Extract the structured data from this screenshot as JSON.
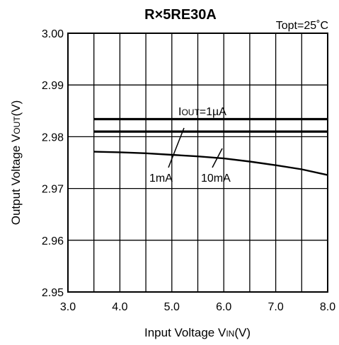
{
  "chart_data": {
    "type": "line",
    "title": "R×5RE30A",
    "condition": "Topt=25˚C",
    "xlabel": {
      "main": "Input Voltage V",
      "sub": "IN",
      "suffix": "(V)"
    },
    "ylabel": {
      "main": "Output Voltage V",
      "sub": "OUT",
      "suffix": "(V)"
    },
    "xlim": [
      3.0,
      8.0
    ],
    "ylim": [
      2.95,
      3.0
    ],
    "x_ticks": [
      3.0,
      3.5,
      4.0,
      4.5,
      5.0,
      5.5,
      6.0,
      6.5,
      7.0,
      7.5,
      8.0
    ],
    "x_tick_labels": [
      "3.0",
      "4.0",
      "5.0",
      "6.0",
      "7.0",
      "8.0"
    ],
    "y_ticks": [
      2.95,
      2.96,
      2.97,
      2.98,
      2.99,
      3.0
    ],
    "y_tick_labels": [
      "2.95",
      "2.96",
      "2.97",
      "2.98",
      "2.99",
      "3.00"
    ],
    "grid": true,
    "series": [
      {
        "name": "IOUT=1µA",
        "x": [
          3.5,
          4.0,
          5.0,
          6.0,
          7.0,
          8.0
        ],
        "y": [
          2.9834,
          2.9834,
          2.9834,
          2.9834,
          2.9834,
          2.9834
        ]
      },
      {
        "name": "1mA",
        "x": [
          3.5,
          4.0,
          5.0,
          6.0,
          7.0,
          8.0
        ],
        "y": [
          2.981,
          2.981,
          2.981,
          2.981,
          2.981,
          2.981
        ]
      },
      {
        "name": "10mA",
        "x": [
          3.5,
          4.0,
          4.5,
          5.0,
          5.5,
          6.0,
          6.5,
          7.0,
          7.5,
          8.0
        ],
        "y": [
          2.9771,
          2.977,
          2.9768,
          2.9765,
          2.9762,
          2.9758,
          2.9752,
          2.9745,
          2.9737,
          2.9726
        ]
      }
    ],
    "annotations": {
      "iout": {
        "main": "I",
        "sub": "OUT",
        "suffix": "=1µA"
      },
      "ma1": "1mA",
      "ma10": "10mA"
    }
  }
}
